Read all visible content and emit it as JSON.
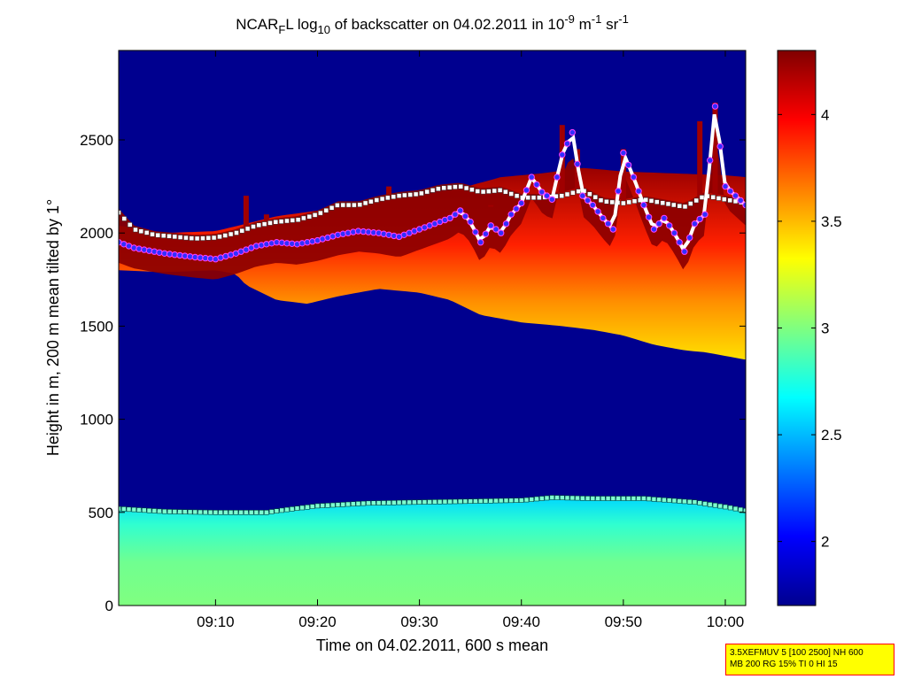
{
  "chart_data": {
    "type": "heatmap",
    "title": {
      "prefix": "NCAR",
      "sub1": "F",
      "mid1": "L log",
      "sub2": "10",
      "mid2": " of backscatter on 04.02.2011 in 10",
      "sup1": "-9",
      "mid3": " m",
      "sup2": "-1",
      "mid4": " sr",
      "sup3": "-1"
    },
    "xlabel": "Time on 04.02.2011, 600 s mean",
    "ylabel": "Height in m, 200 m mean tilted by 1°",
    "x_range_min": [
      0.5,
      62.0
    ],
    "y_range_m": [
      0,
      2980
    ],
    "x_ticks": [
      {
        "min": 10,
        "label": "09:10"
      },
      {
        "min": 20,
        "label": "09:20"
      },
      {
        "min": 30,
        "label": "09:30"
      },
      {
        "min": 40,
        "label": "09:40"
      },
      {
        "min": 50,
        "label": "09:50"
      },
      {
        "min": 60,
        "label": "10:00"
      }
    ],
    "y_ticks": [
      0,
      500,
      1000,
      1500,
      2000,
      2500
    ],
    "colorbar": {
      "range": [
        1.7,
        4.3
      ],
      "ticks": [
        2,
        2.5,
        3,
        3.5,
        4
      ],
      "tick_labels": [
        "2",
        "2.5",
        "3",
        "3.5",
        "4"
      ]
    },
    "layers": {
      "aerosol_top_m": [
        [
          0.5,
          520
        ],
        [
          5,
          505
        ],
        [
          10,
          500
        ],
        [
          15,
          500
        ],
        [
          17,
          515
        ],
        [
          20,
          535
        ],
        [
          25,
          550
        ],
        [
          30,
          555
        ],
        [
          35,
          560
        ],
        [
          40,
          565
        ],
        [
          43,
          580
        ],
        [
          47,
          575
        ],
        [
          52,
          575
        ],
        [
          57,
          555
        ],
        [
          60,
          530
        ],
        [
          62,
          510
        ]
      ],
      "cloud_base_m": [
        [
          0.5,
          1800
        ],
        [
          5,
          1790
        ],
        [
          10,
          1800
        ],
        [
          12,
          1780
        ],
        [
          13,
          1720
        ],
        [
          16,
          1640
        ],
        [
          19,
          1620
        ],
        [
          22,
          1660
        ],
        [
          26,
          1700
        ],
        [
          30,
          1680
        ],
        [
          33,
          1640
        ],
        [
          36,
          1560
        ],
        [
          40,
          1520
        ],
        [
          44,
          1500
        ],
        [
          47,
          1480
        ],
        [
          50,
          1450
        ],
        [
          53,
          1400
        ],
        [
          56,
          1370
        ],
        [
          58,
          1360
        ],
        [
          62,
          1320
        ]
      ],
      "cloud_top_m": [
        [
          0.5,
          2040
        ],
        [
          5,
          2000
        ],
        [
          10,
          2010
        ],
        [
          13,
          2050
        ],
        [
          16,
          2090
        ],
        [
          20,
          2120
        ],
        [
          25,
          2170
        ],
        [
          30,
          2200
        ],
        [
          34,
          2240
        ],
        [
          38,
          2300
        ],
        [
          42,
          2320
        ],
        [
          46,
          2350
        ],
        [
          50,
          2330
        ],
        [
          55,
          2320
        ],
        [
          60,
          2310
        ],
        [
          62,
          2300
        ]
      ],
      "detected_cloud_base_m": [
        [
          0.5,
          1950
        ],
        [
          2,
          1920
        ],
        [
          5,
          1890
        ],
        [
          8,
          1870
        ],
        [
          10,
          1860
        ],
        [
          12,
          1890
        ],
        [
          14,
          1930
        ],
        [
          16,
          1950
        ],
        [
          18,
          1940
        ],
        [
          20,
          1960
        ],
        [
          22,
          1990
        ],
        [
          24,
          2010
        ],
        [
          26,
          2000
        ],
        [
          28,
          1980
        ],
        [
          30,
          2020
        ],
        [
          32,
          2060
        ],
        [
          33,
          2080
        ],
        [
          34,
          2120
        ],
        [
          35,
          2060
        ],
        [
          36,
          1950
        ],
        [
          37,
          2040
        ],
        [
          38,
          2000
        ],
        [
          39,
          2100
        ],
        [
          40,
          2160
        ],
        [
          41,
          2300
        ],
        [
          42,
          2220
        ],
        [
          43,
          2180
        ],
        [
          44,
          2420
        ],
        [
          45,
          2540
        ],
        [
          46,
          2200
        ],
        [
          47,
          2150
        ],
        [
          48,
          2080
        ],
        [
          49,
          2020
        ],
        [
          50,
          2430
        ],
        [
          51,
          2300
        ],
        [
          52,
          2150
        ],
        [
          53,
          2020
        ],
        [
          54,
          2080
        ],
        [
          55,
          2000
        ],
        [
          56,
          1900
        ],
        [
          57,
          2050
        ],
        [
          58,
          2100
        ],
        [
          59,
          2680
        ],
        [
          60,
          2250
        ],
        [
          61,
          2200
        ],
        [
          62,
          2150
        ]
      ],
      "detected_cloud_top_m": [
        [
          0.5,
          2110
        ],
        [
          2,
          2020
        ],
        [
          4,
          1990
        ],
        [
          6,
          1980
        ],
        [
          8,
          1970
        ],
        [
          10,
          1975
        ],
        [
          12,
          2000
        ],
        [
          14,
          2040
        ],
        [
          16,
          2060
        ],
        [
          18,
          2070
        ],
        [
          20,
          2100
        ],
        [
          22,
          2150
        ],
        [
          24,
          2150
        ],
        [
          26,
          2180
        ],
        [
          28,
          2200
        ],
        [
          30,
          2210
        ],
        [
          32,
          2240
        ],
        [
          34,
          2250
        ],
        [
          36,
          2220
        ],
        [
          38,
          2230
        ],
        [
          40,
          2190
        ],
        [
          42,
          2190
        ],
        [
          44,
          2200
        ],
        [
          46,
          2230
        ],
        [
          48,
          2170
        ],
        [
          50,
          2160
        ],
        [
          52,
          2180
        ],
        [
          54,
          2160
        ],
        [
          56,
          2140
        ],
        [
          58,
          2200
        ],
        [
          60,
          2180
        ],
        [
          62,
          2160
        ]
      ],
      "detected_aerosol_top_m": [
        [
          0.5,
          520
        ],
        [
          5,
          505
        ],
        [
          10,
          500
        ],
        [
          15,
          500
        ],
        [
          17,
          515
        ],
        [
          20,
          535
        ],
        [
          25,
          550
        ],
        [
          30,
          555
        ],
        [
          35,
          560
        ],
        [
          40,
          565
        ],
        [
          43,
          580
        ],
        [
          47,
          575
        ],
        [
          52,
          575
        ],
        [
          57,
          555
        ],
        [
          60,
          530
        ],
        [
          62,
          510
        ]
      ],
      "spikes": [
        {
          "min": 13,
          "top_m": 2200
        },
        {
          "min": 15,
          "top_m": 2100
        },
        {
          "min": 27,
          "top_m": 2250
        },
        {
          "min": 37,
          "top_m": 2150
        },
        {
          "min": 44,
          "top_m": 2580
        },
        {
          "min": 45.5,
          "top_m": 2450
        },
        {
          "min": 50,
          "top_m": 2450
        },
        {
          "min": 57.5,
          "top_m": 2600
        },
        {
          "min": 59,
          "top_m": 2700
        }
      ]
    }
  },
  "info_box": {
    "line1": "3.5XEFMUV 5 [100 2500] NH 600",
    "line2": "MB 200 RG 15% TI 0 HI 15",
    "border_color": "#ff0000",
    "background_color": "#ffff00"
  }
}
